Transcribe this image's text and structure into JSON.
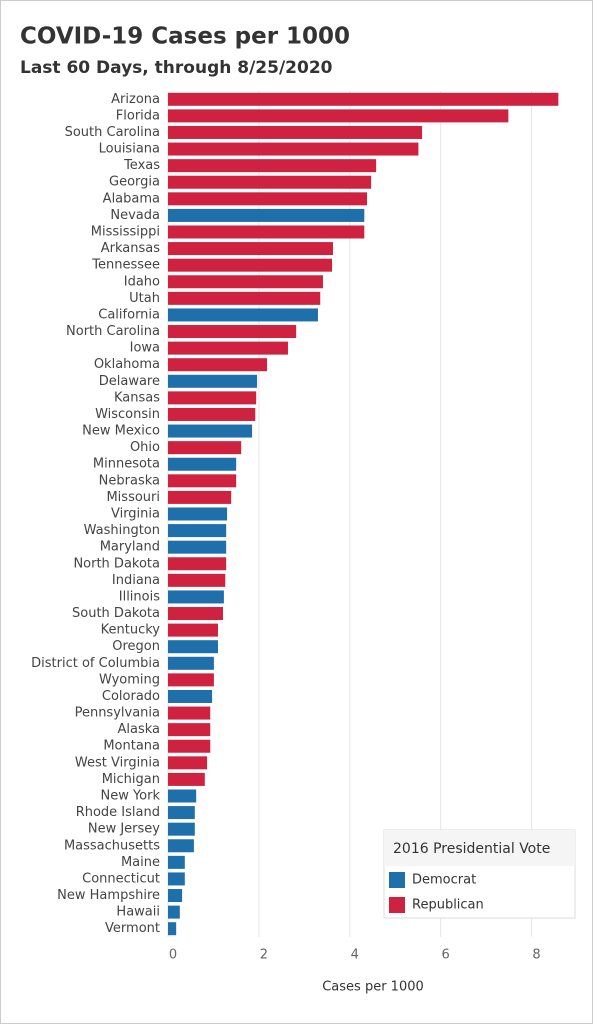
{
  "chart_data": {
    "type": "bar",
    "orientation": "horizontal",
    "title": "COVID-19 Cases per 1000",
    "subtitle": "Last 60 Days, through 8/25/2020",
    "x_label": "Cases per 1000",
    "legend_title": "2016 Presidential Vote",
    "legend_position": "bottom-right",
    "grid": true,
    "categories": [
      "Arizona",
      "Florida",
      "South Carolina",
      "Louisiana",
      "Texas",
      "Georgia",
      "Alabama",
      "Nevada",
      "Mississippi",
      "Arkansas",
      "Tennessee",
      "Idaho",
      "Utah",
      "California",
      "North Carolina",
      "Iowa",
      "Oklahoma",
      "Delaware",
      "Kansas",
      "Wisconsin",
      "New Mexico",
      "Ohio",
      "Minnesota",
      "Nebraska",
      "Missouri",
      "Virginia",
      "Washington",
      "Maryland",
      "North Dakota",
      "Indiana",
      "Illinois",
      "South Dakota",
      "Kentucky",
      "Oregon",
      "District of Columbia",
      "Wyoming",
      "Colorado",
      "Pennsylvania",
      "Alaska",
      "Montana",
      "West Virginia",
      "Michigan",
      "New York",
      "Rhode Island",
      "New Jersey",
      "Massachusetts",
      "Maine",
      "Connecticut",
      "New Hampshire",
      "Hawaii",
      "Vermont"
    ],
    "series": [
      {
        "name": "Democrat",
        "color": "#1f6fab",
        "values": [
          null,
          null,
          null,
          null,
          null,
          null,
          null,
          4.32,
          null,
          null,
          null,
          null,
          null,
          3.3,
          null,
          null,
          null,
          1.96,
          null,
          null,
          1.85,
          null,
          1.5,
          null,
          null,
          1.3,
          1.28,
          1.28,
          null,
          null,
          1.23,
          null,
          null,
          1.1,
          1.01,
          null,
          0.97,
          null,
          null,
          null,
          null,
          null,
          0.62,
          0.59,
          0.59,
          0.57,
          0.37,
          0.37,
          0.31,
          0.26,
          0.18
        ]
      },
      {
        "name": "Republican",
        "color": "#cf2240",
        "values": [
          8.59,
          7.49,
          5.59,
          5.51,
          4.58,
          4.47,
          4.38,
          null,
          4.32,
          3.63,
          3.61,
          3.41,
          3.35,
          null,
          2.82,
          2.64,
          2.18,
          null,
          1.94,
          1.92,
          null,
          1.61,
          null,
          1.5,
          1.39,
          null,
          null,
          null,
          1.28,
          1.26,
          null,
          1.21,
          1.1,
          null,
          null,
          1.01,
          null,
          0.93,
          0.93,
          0.93,
          0.86,
          0.81,
          null,
          null,
          null,
          null,
          null,
          null,
          null,
          null,
          null
        ]
      }
    ],
    "xlim": [
      0,
      9
    ],
    "xticks": [
      0,
      2,
      4,
      6,
      8
    ]
  }
}
